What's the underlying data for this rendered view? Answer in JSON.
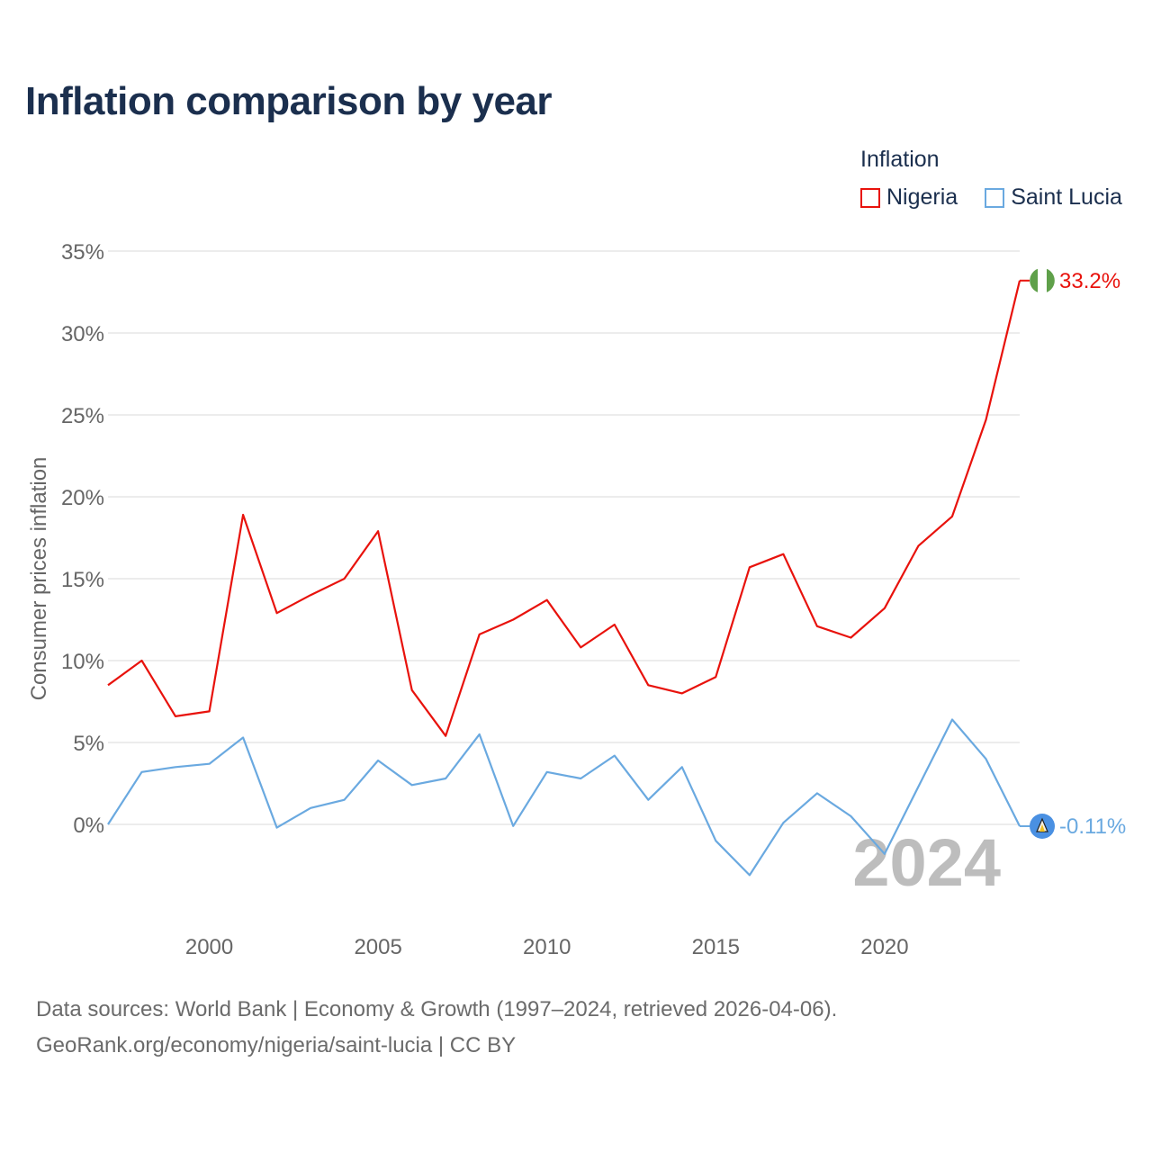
{
  "title": "Inflation comparison by year",
  "legend": {
    "title": "Inflation",
    "items": [
      {
        "label": "Nigeria",
        "color": "#e8120c"
      },
      {
        "label": "Saint Lucia",
        "color": "#6aa9e0"
      }
    ]
  },
  "footer": {
    "line1": "Data sources: World Bank | Economy & Growth (1997–2024, retrieved 2026-04-06).",
    "line2": "GeoRank.org/economy/nigeria/saint-lucia | CC BY"
  },
  "chart_data": {
    "type": "line",
    "title": "Inflation comparison by year",
    "xlabel": "",
    "ylabel": "Consumer prices inflation",
    "year_watermark": "2024",
    "xlim": [
      1997,
      2024
    ],
    "ylim": [
      -5,
      35
    ],
    "x_ticks": [
      2000,
      2005,
      2010,
      2015,
      2020
    ],
    "y_ticks": [
      {
        "value": 0,
        "label": "0%"
      },
      {
        "value": 5,
        "label": "5%"
      },
      {
        "value": 10,
        "label": "10%"
      },
      {
        "value": 15,
        "label": "15%"
      },
      {
        "value": 20,
        "label": "20%"
      },
      {
        "value": 25,
        "label": "25%"
      },
      {
        "value": 30,
        "label": "30%"
      },
      {
        "value": 35,
        "label": "35%"
      }
    ],
    "grid": true,
    "x": [
      1997,
      1998,
      1999,
      2000,
      2001,
      2002,
      2003,
      2004,
      2005,
      2006,
      2007,
      2008,
      2009,
      2010,
      2011,
      2012,
      2013,
      2014,
      2015,
      2016,
      2017,
      2018,
      2019,
      2020,
      2021,
      2022,
      2023,
      2024
    ],
    "series": [
      {
        "name": "Nigeria",
        "color": "#e8120c",
        "end_label": "33.2%",
        "values": [
          8.5,
          10.0,
          6.6,
          6.9,
          18.9,
          12.9,
          14.0,
          15.0,
          17.9,
          8.2,
          5.4,
          11.6,
          12.5,
          13.7,
          10.8,
          12.2,
          8.5,
          8.0,
          9.0,
          15.7,
          16.5,
          12.1,
          11.4,
          13.2,
          17.0,
          18.8,
          24.7,
          33.2
        ]
      },
      {
        "name": "Saint Lucia",
        "color": "#6aa9e0",
        "end_label": "-0.11%",
        "values": [
          0.0,
          3.2,
          3.5,
          3.7,
          5.3,
          -0.2,
          1.0,
          1.5,
          3.9,
          2.4,
          2.8,
          5.5,
          -0.1,
          3.2,
          2.8,
          4.2,
          1.5,
          3.5,
          -1.0,
          -3.1,
          0.1,
          1.9,
          0.5,
          -1.8,
          2.3,
          6.4,
          4.0,
          -0.11
        ]
      }
    ]
  }
}
